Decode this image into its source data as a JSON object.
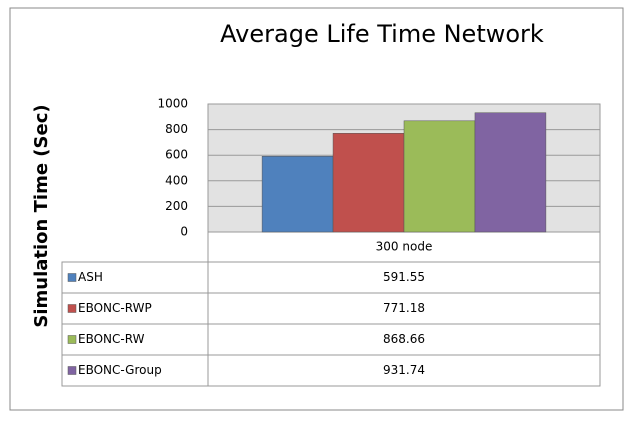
{
  "chart_data": {
    "type": "bar",
    "title": "Average Life Time Network",
    "y_label": "Simulation Time  (Sec)",
    "categories": [
      "300 node"
    ],
    "series": [
      {
        "name": "ASH",
        "color": "#4f81bd",
        "values": [
          591.55
        ]
      },
      {
        "name": "EBONC-RWP",
        "color": "#c0504d",
        "values": [
          771.18
        ]
      },
      {
        "name": "EBONC-RW",
        "color": "#9bbb59",
        "values": [
          868.66
        ]
      },
      {
        "name": "EBONC-Group",
        "color": "#8064a2",
        "values": [
          931.74
        ]
      }
    ],
    "ylim": [
      0,
      1000
    ],
    "yticks": [
      0,
      200,
      400,
      600,
      800,
      1000
    ],
    "grid": true
  }
}
